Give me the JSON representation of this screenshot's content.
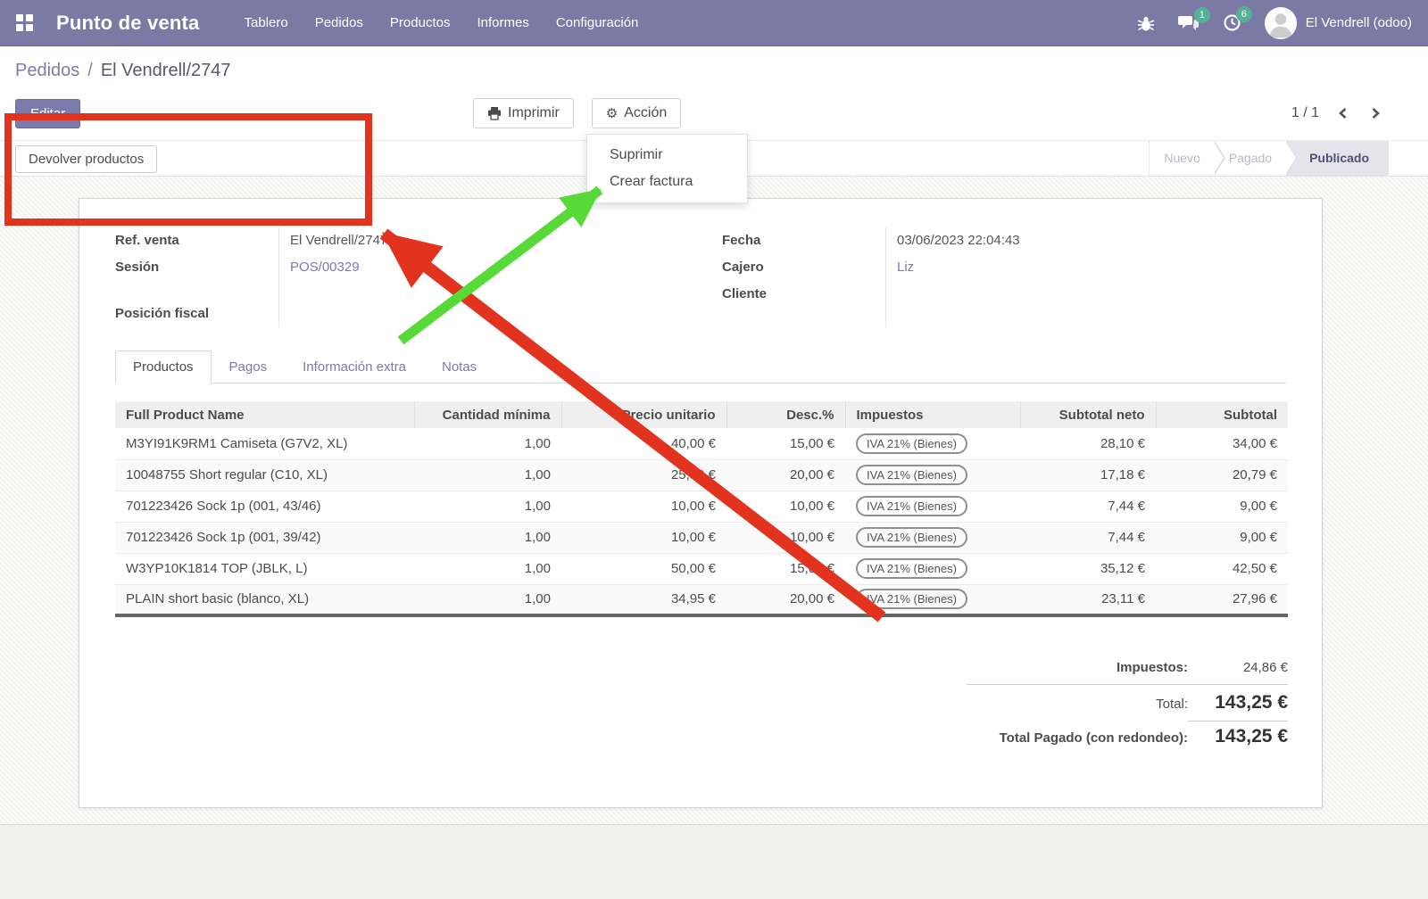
{
  "nav": {
    "app_name": "Punto de venta",
    "menus": [
      "Tablero",
      "Pedidos",
      "Productos",
      "Informes",
      "Configuración"
    ],
    "icons": [
      "apps-grid-icon",
      "bug-icon",
      "chat-icon",
      "clock-icon",
      "avatar"
    ],
    "messages_badge": "1",
    "activities_badge": "6",
    "user_name": "El Vendrell (odoo)"
  },
  "breadcrumb": {
    "parent": "Pedidos",
    "separator": "/",
    "current": "El Vendrell/2747"
  },
  "controls": {
    "edit": "Editar",
    "print": "Imprimir",
    "action": "Acción",
    "pager": "1 / 1",
    "dropdown": [
      "Suprimir",
      "Crear factura"
    ]
  },
  "statusbar": {
    "return_button": "Devolver productos",
    "steps": [
      {
        "label": "Nuevo",
        "active": false
      },
      {
        "label": "Pagado",
        "active": false
      },
      {
        "label": "Publicado",
        "active": true
      }
    ]
  },
  "form": {
    "left": [
      {
        "label": "Ref. venta",
        "value": "El Vendrell/2747",
        "link": false,
        "gap": false
      },
      {
        "label": "Sesión",
        "value": "POS/00329",
        "link": true,
        "gap": false
      },
      {
        "label": "Posición fiscal",
        "value": "",
        "link": false,
        "gap": true
      }
    ],
    "right": [
      {
        "label": "Fecha",
        "value": "03/06/2023 22:04:43",
        "link": false,
        "gap": false
      },
      {
        "label": "Cajero",
        "value": "Liz",
        "link": true,
        "gap": false
      },
      {
        "label": "Cliente",
        "value": "",
        "link": false,
        "gap": false
      }
    ]
  },
  "tabs": [
    {
      "label": "Productos",
      "active": true
    },
    {
      "label": "Pagos",
      "active": false
    },
    {
      "label": "Información extra",
      "active": false
    },
    {
      "label": "Notas",
      "active": false
    }
  ],
  "table": {
    "headers": [
      {
        "label": "Full Product Name",
        "align": "left"
      },
      {
        "label": "Cantidad mínima",
        "align": "right"
      },
      {
        "label": "Precio unitario",
        "align": "right"
      },
      {
        "label": "Desc.%",
        "align": "right"
      },
      {
        "label": "Impuestos",
        "align": "left"
      },
      {
        "label": "Subtotal neto",
        "align": "right"
      },
      {
        "label": "Subtotal",
        "align": "right"
      }
    ],
    "rows": [
      {
        "name": "M3YI91K9RM1 Camiseta (G7V2, XL)",
        "qty": "1,00",
        "price": "40,00 €",
        "disc": "15,00 €",
        "tax": "IVA 21% (Bienes)",
        "net": "28,10 €",
        "subtotal": "34,00 €"
      },
      {
        "name": "10048755 Short regular (C10, XL)",
        "qty": "1,00",
        "price": "25,99 €",
        "disc": "20,00 €",
        "tax": "IVA 21% (Bienes)",
        "net": "17,18 €",
        "subtotal": "20,79 €"
      },
      {
        "name": "701223426 Sock 1p (001, 43/46)",
        "qty": "1,00",
        "price": "10,00 €",
        "disc": "10,00 €",
        "tax": "IVA 21% (Bienes)",
        "net": "7,44 €",
        "subtotal": "9,00 €"
      },
      {
        "name": "701223426 Sock 1p (001, 39/42)",
        "qty": "1,00",
        "price": "10,00 €",
        "disc": "10,00 €",
        "tax": "IVA 21% (Bienes)",
        "net": "7,44 €",
        "subtotal": "9,00 €"
      },
      {
        "name": "W3YP10K1814 TOP (JBLK, L)",
        "qty": "1,00",
        "price": "50,00 €",
        "disc": "15,00 €",
        "tax": "IVA 21% (Bienes)",
        "net": "35,12 €",
        "subtotal": "42,50 €"
      },
      {
        "name": "PLAIN short basic (blanco, XL)",
        "qty": "1,00",
        "price": "34,95 €",
        "disc": "20,00 €",
        "tax": "IVA 21% (Bienes)",
        "net": "23,11 €",
        "subtotal": "27,96 €"
      }
    ]
  },
  "totals": {
    "tax_label": "Impuestos:",
    "tax_value": "24,86 €",
    "total_label": "Total:",
    "total_value": "143,25 €",
    "paid_label": "Total Pagado (con redondeo):",
    "paid_value": "143,25 €"
  },
  "annotations": {
    "box_color": "#e2331e",
    "red_arrow_color": "#e2331e",
    "green_arrow_color": "#57d938"
  },
  "colors": {
    "nav_bar": "#7b7aa4",
    "accent_purple": "#7c7bad",
    "badge_green": "#57b096",
    "status_active_bg": "#e4e4ea"
  }
}
